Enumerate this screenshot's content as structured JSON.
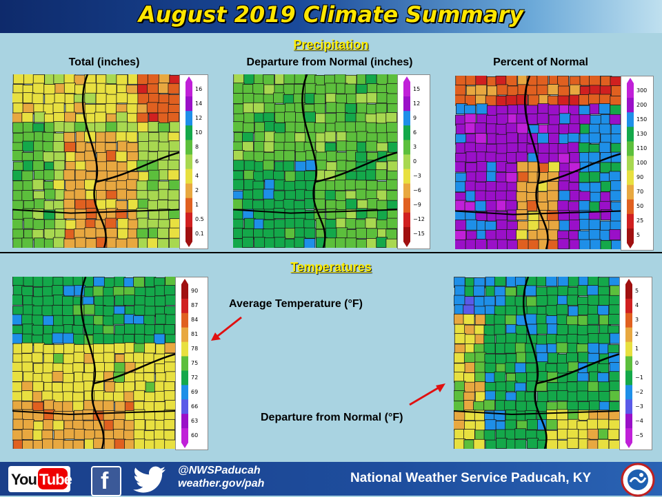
{
  "title": "August 2019 Climate Summary",
  "sections": {
    "precipitation": "Precipitation",
    "temperatures": "Temperatures"
  },
  "panels": {
    "precip_total": {
      "label": "Total (inches)",
      "legend": [
        "16",
        "14",
        "12",
        "10",
        "8",
        "6",
        "4",
        "2",
        "1",
        "0.5",
        "0.1"
      ],
      "colors": [
        "#c020d8",
        "#9a10c8",
        "#1e8fe8",
        "#14a84a",
        "#5cbf3c",
        "#a8d850",
        "#e8e040",
        "#e8a840",
        "#e06020",
        "#d02020",
        "#a01010"
      ]
    },
    "precip_departure": {
      "label": "Departure from Normal (inches)",
      "legend": [
        "15",
        "12",
        "9",
        "6",
        "3",
        "0",
        "−3",
        "−6",
        "−9",
        "−12",
        "−15"
      ],
      "colors": [
        "#c020d8",
        "#9a10c8",
        "#1e8fe8",
        "#14a84a",
        "#5cbf3c",
        "#a8d850",
        "#e8e040",
        "#e8a840",
        "#e06020",
        "#d02020",
        "#a01010"
      ]
    },
    "precip_percent": {
      "label": "Percent of Normal",
      "legend": [
        "300",
        "200",
        "150",
        "130",
        "110",
        "100",
        "90",
        "70",
        "50",
        "25",
        "5"
      ],
      "colors": [
        "#c020d8",
        "#9a10c8",
        "#1e8fe8",
        "#14a84a",
        "#5cbf3c",
        "#a8d850",
        "#e8e040",
        "#e8a840",
        "#e06020",
        "#d02020",
        "#a01010"
      ]
    },
    "temp_average": {
      "annotation": "Average Temperature (°F)",
      "legend": [
        "90",
        "87",
        "84",
        "81",
        "78",
        "75",
        "72",
        "69",
        "66",
        "63",
        "60"
      ],
      "colors": [
        "#a01010",
        "#d02020",
        "#e06020",
        "#e8a840",
        "#e8e040",
        "#5cbf3c",
        "#14a84a",
        "#1e8fe8",
        "#5a5ae8",
        "#9a10c8",
        "#c020d8"
      ]
    },
    "temp_departure": {
      "annotation": "Departure from Normal (°F)",
      "legend": [
        "5",
        "4",
        "3",
        "2",
        "1",
        "0",
        "−1",
        "−2",
        "−3",
        "−4",
        "−5"
      ],
      "colors": [
        "#a01010",
        "#d02020",
        "#e06020",
        "#e8a840",
        "#e8e040",
        "#5cbf3c",
        "#14a84a",
        "#1e8fe8",
        "#5a5ae8",
        "#9a10c8",
        "#c020d8"
      ]
    }
  },
  "footer": {
    "youtube_you": "You",
    "youtube_tube": "Tube",
    "facebook_letter": "f",
    "handle": "@NWSPaducah",
    "url": "weather.gov/pah",
    "office": "National Weather Service Paducah, KY"
  }
}
